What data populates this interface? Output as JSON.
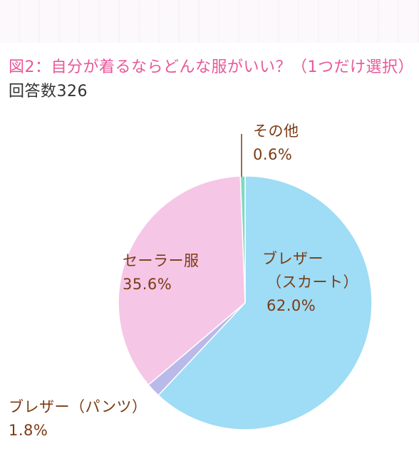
{
  "title": {
    "prefix": "図2：自分が着るならどんな服がいい？（1つだけ選択）",
    "suffix": "回答数326"
  },
  "chart_data": {
    "type": "pie",
    "slices": [
      {
        "name": "ブレザー（スカート）",
        "label_lines": [
          "ブレザー",
          "（スカート）"
        ],
        "value": 62.0,
        "value_label": "62.0%",
        "color": "#9fdcf5"
      },
      {
        "name": "ブレザー（パンツ）",
        "label_lines": [
          "ブレザー（パンツ）"
        ],
        "value": 1.8,
        "value_label": "1.8%",
        "color": "#b9b9ea"
      },
      {
        "name": "セーラー服",
        "label_lines": [
          "セーラー服"
        ],
        "value": 35.6,
        "value_label": "35.6%",
        "color": "#f5c6e6"
      },
      {
        "name": "その他",
        "label_lines": [
          "その他"
        ],
        "value": 0.6,
        "value_label": "0.6%",
        "color": "#7fd9c0"
      }
    ],
    "label_color": "#7a3b14"
  }
}
